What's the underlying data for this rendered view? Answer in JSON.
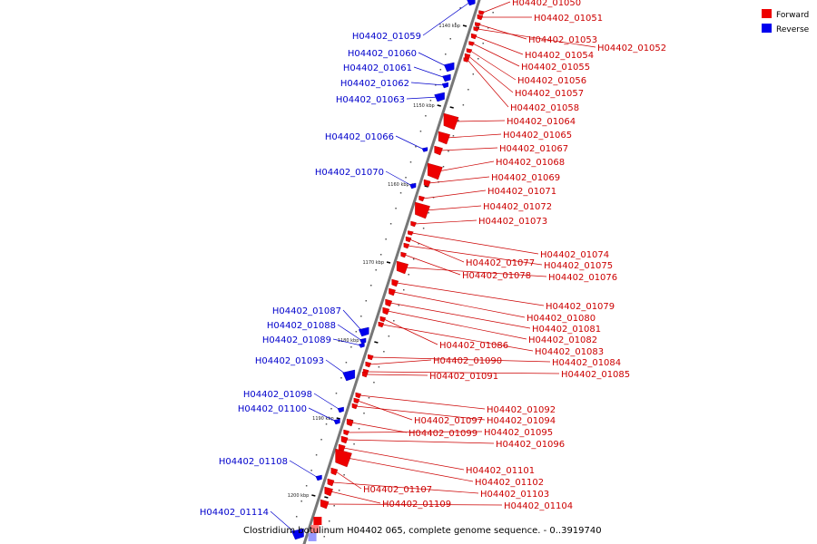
{
  "legend": {
    "items": [
      {
        "label": "Forward",
        "color": "#ee0000"
      },
      {
        "label": "Reverse",
        "color": "#0000ee"
      }
    ]
  },
  "caption": "Clostridium botulinum H04402 065, complete genome sequence. - 0..3919740",
  "ticks": [
    "1140 kbp",
    "1150 kbp",
    "1160 kbp",
    "1170 kbp",
    "1180 kbp",
    "1190 kbp",
    "1200 kbp"
  ],
  "forward_genes": [
    "H04402_01050",
    "H04402_01051",
    "H04402_01053",
    "H04402_01052",
    "H04402_01054",
    "H04402_01055",
    "H04402_01056",
    "H04402_01057",
    "H04402_01058",
    "H04402_01064",
    "H04402_01065",
    "H04402_01067",
    "H04402_01068",
    "H04402_01069",
    "H04402_01071",
    "H04402_01072",
    "H04402_01073",
    "H04402_01074",
    "H04402_01077",
    "H04402_01075",
    "H04402_01078",
    "H04402_01076",
    "H04402_01079",
    "H04402_01080",
    "H04402_01081",
    "H04402_01082",
    "H04402_01086",
    "H04402_01083",
    "H04402_01084",
    "H04402_01090",
    "H04402_01085",
    "H04402_01091",
    "H04402_01092",
    "H04402_01097",
    "H04402_01094",
    "H04402_01099",
    "H04402_01095",
    "H04402_01096",
    "H04402_01101",
    "H04402_01102",
    "H04402_01107",
    "H04402_01103",
    "H04402_01109",
    "H04402_01104"
  ],
  "reverse_genes": [
    "H04402_01059",
    "H04402_01060",
    "H04402_01061",
    "H04402_01062",
    "H04402_01063",
    "H04402_01066",
    "H04402_01070",
    "H04402_01087",
    "H04402_01088",
    "H04402_01089",
    "H04402_01093",
    "H04402_01098",
    "H04402_01100",
    "H04402_01108",
    "H04402_01114"
  ],
  "colors": {
    "forward": "#ee0000",
    "reverse": "#0000ee",
    "backbone": "#777777"
  }
}
